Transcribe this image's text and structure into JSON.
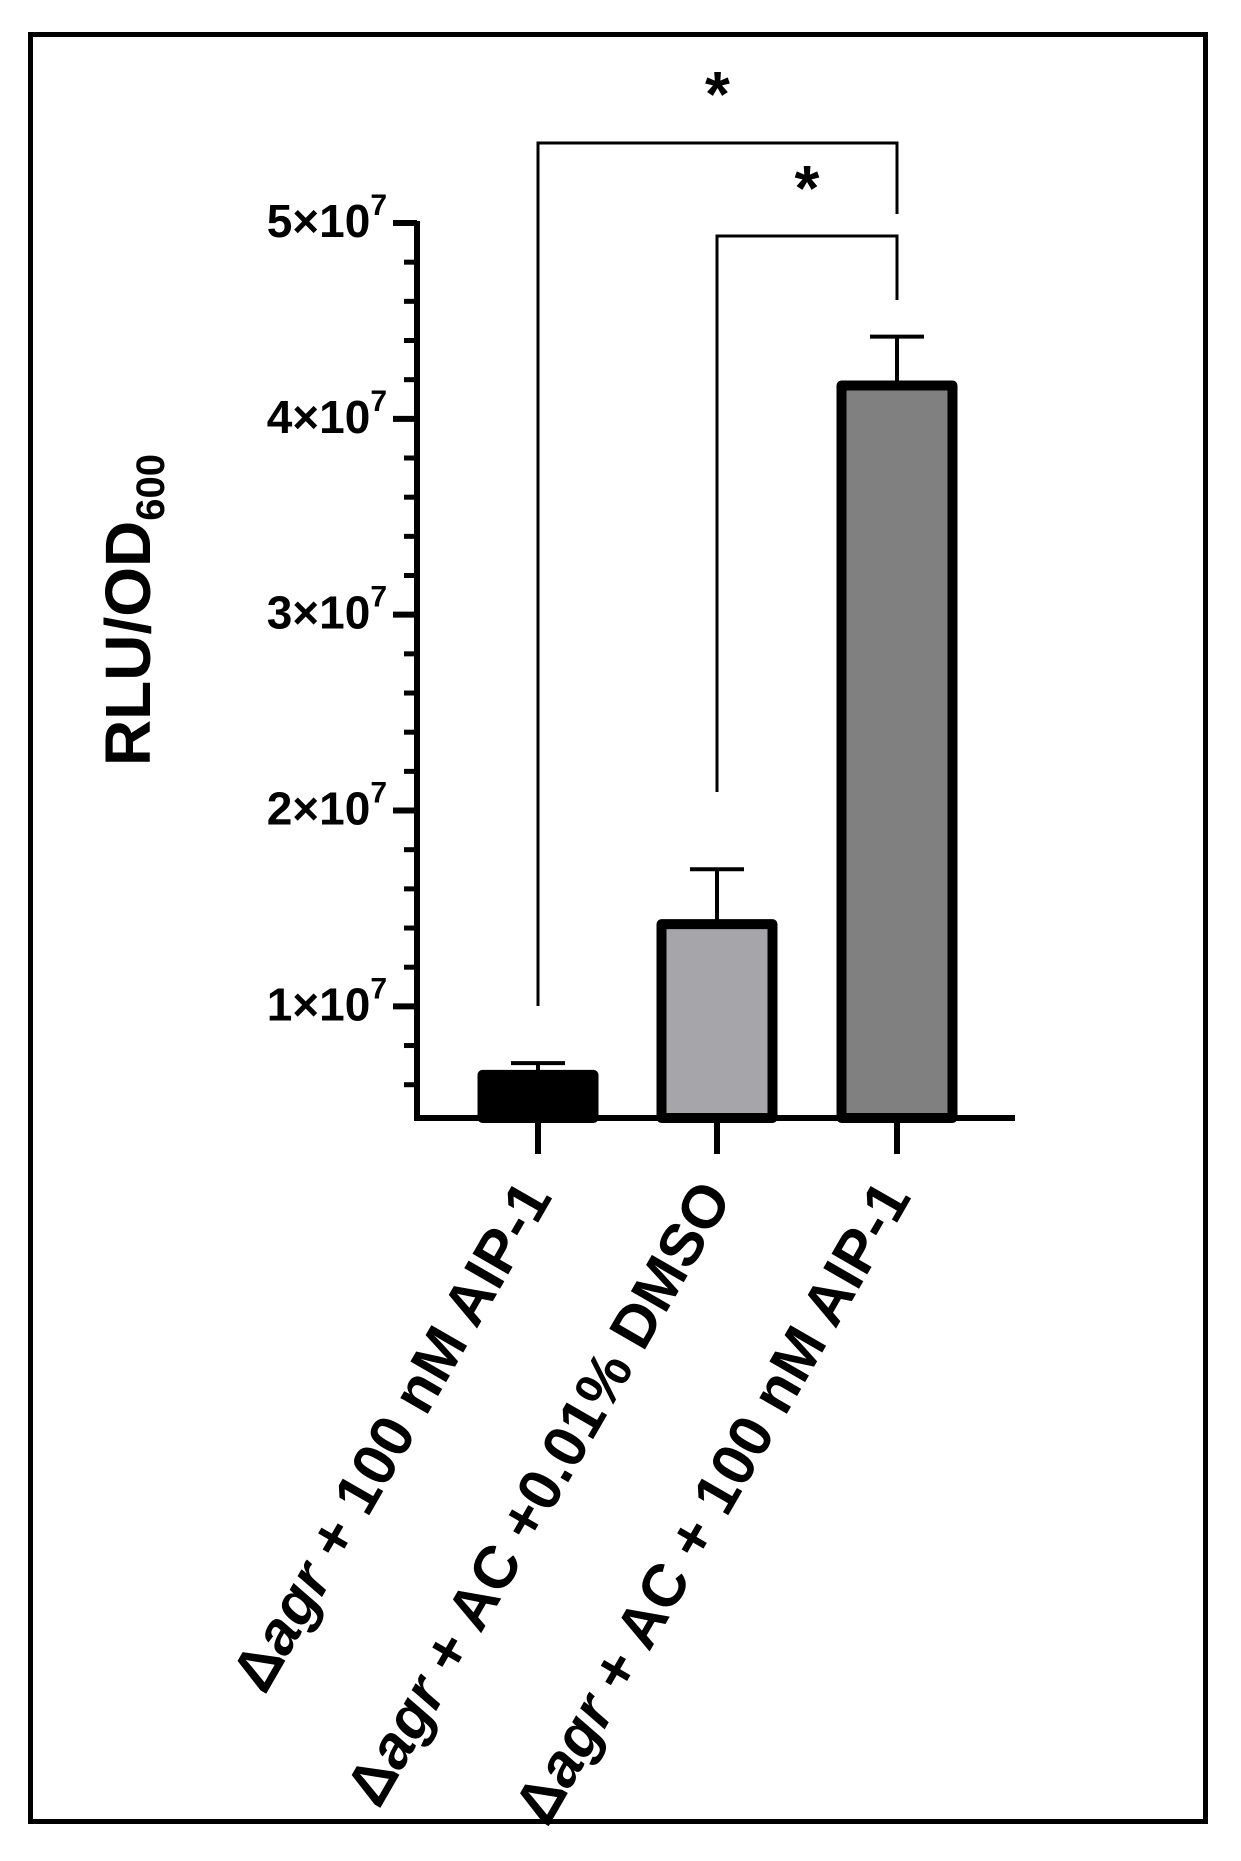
{
  "chart_data": {
    "type": "bar",
    "ylabel": {
      "main": "RLU/OD",
      "sub": "600"
    },
    "ylim": [
      4300000,
      50000000
    ],
    "yticks": [
      {
        "value": 10000000,
        "mantissa": "1×10",
        "exp": "7"
      },
      {
        "value": 20000000,
        "mantissa": "2×10",
        "exp": "7"
      },
      {
        "value": 30000000,
        "mantissa": "3×10",
        "exp": "7"
      },
      {
        "value": 40000000,
        "mantissa": "4×10",
        "exp": "7"
      },
      {
        "value": 50000000,
        "mantissa": "5×10",
        "exp": "7"
      }
    ],
    "minor_step": 2000000,
    "categories": [
      {
        "delta": "Δ",
        "italic": "agr",
        "rest": " +  100 nM AIP-1"
      },
      {
        "delta": "Δ",
        "italic": "agr",
        "rest": " + AC +0.01% DMSO"
      },
      {
        "delta": "Δ",
        "italic": "agr",
        "rest": " + AC + 100 nM AIP-1"
      }
    ],
    "values": [
      6500000,
      14200000,
      41700000
    ],
    "errors": [
      600000,
      2800000,
      2500000
    ],
    "colors": [
      "#000000",
      "#a6a6aa",
      "#808080"
    ],
    "significance": [
      {
        "from": 0,
        "to": 2,
        "label": "*"
      },
      {
        "from": 1,
        "to": 2,
        "label": "*"
      }
    ]
  }
}
